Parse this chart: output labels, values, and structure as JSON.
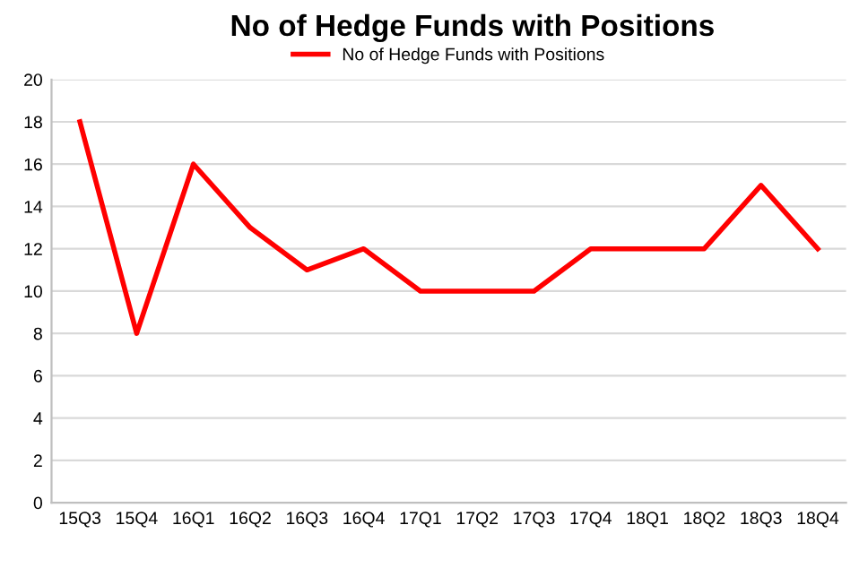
{
  "chart_data": {
    "type": "line",
    "title": "No of Hedge Funds with Positions",
    "categories": [
      "15Q3",
      "15Q4",
      "16Q1",
      "16Q2",
      "16Q3",
      "16Q4",
      "17Q1",
      "17Q2",
      "17Q3",
      "17Q4",
      "18Q1",
      "18Q2",
      "18Q3",
      "18Q4"
    ],
    "series": [
      {
        "name": "No of Hedge Funds with Positions",
        "color": "#ff0000",
        "values": [
          18,
          8,
          16,
          13,
          11,
          12,
          10,
          10,
          10,
          12,
          12,
          12,
          15,
          12
        ]
      }
    ],
    "ylim": [
      0,
      20
    ],
    "yticks": [
      0,
      2,
      4,
      6,
      8,
      10,
      12,
      14,
      16,
      18,
      20
    ],
    "grid": "y",
    "legend": "top",
    "marker": "none",
    "line_style": "solid"
  }
}
